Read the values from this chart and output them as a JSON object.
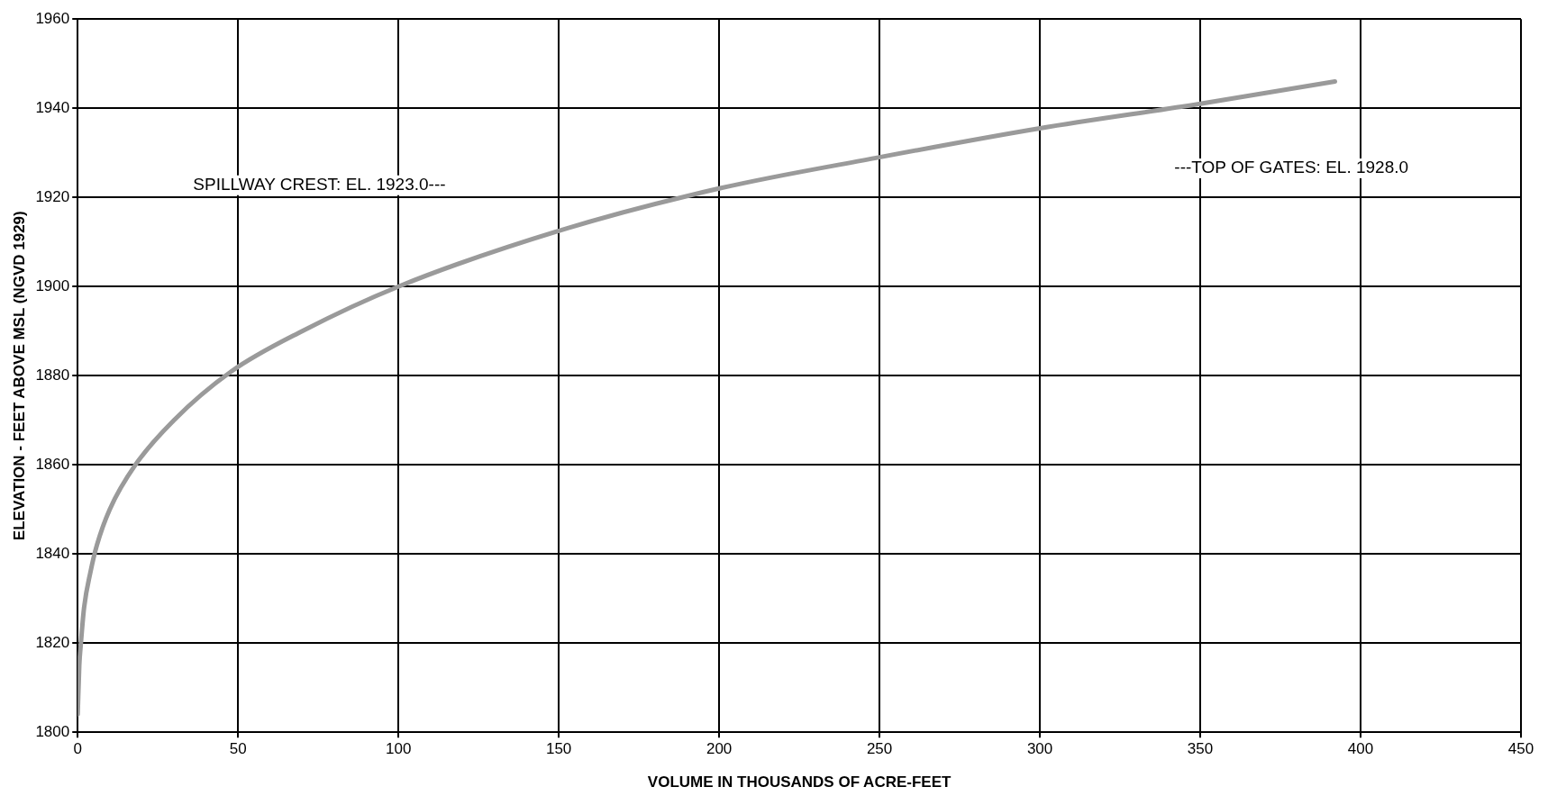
{
  "chart_data": {
    "type": "line",
    "xlabel": "VOLUME IN THOUSANDS OF ACRE-FEET",
    "ylabel": "ELEVATION - FEET ABOVE MSL (NGVD 1929)",
    "annotations": [
      "SPILLWAY CREST: EL. 1923.0---",
      "---TOP OF GATES: EL. 1928.0"
    ],
    "series": [
      {
        "color": "#9a9a9a",
        "x": [
          0,
          0.5,
          1,
          2,
          4,
          6,
          10,
          18,
          30,
          48,
          70,
          100,
          150,
          200,
          250,
          300,
          350,
          392
        ],
        "values": [
          1804,
          1815,
          1820,
          1828,
          1836,
          1842,
          1850,
          1860,
          1870,
          1881,
          1890,
          1900,
          1912.5,
          1922,
          1929,
          1935.5,
          1941,
          1946
        ]
      }
    ],
    "xlim": [
      0,
      450
    ],
    "xticks": [
      0,
      50,
      100,
      150,
      200,
      250,
      300,
      350,
      400,
      450
    ],
    "ylim": [
      1800,
      1960
    ],
    "yticks": [
      1800,
      1820,
      1840,
      1860,
      1880,
      1900,
      1920,
      1940,
      1960
    ],
    "grid": true,
    "legend": false,
    "marker": "none",
    "line_style": "solid"
  }
}
